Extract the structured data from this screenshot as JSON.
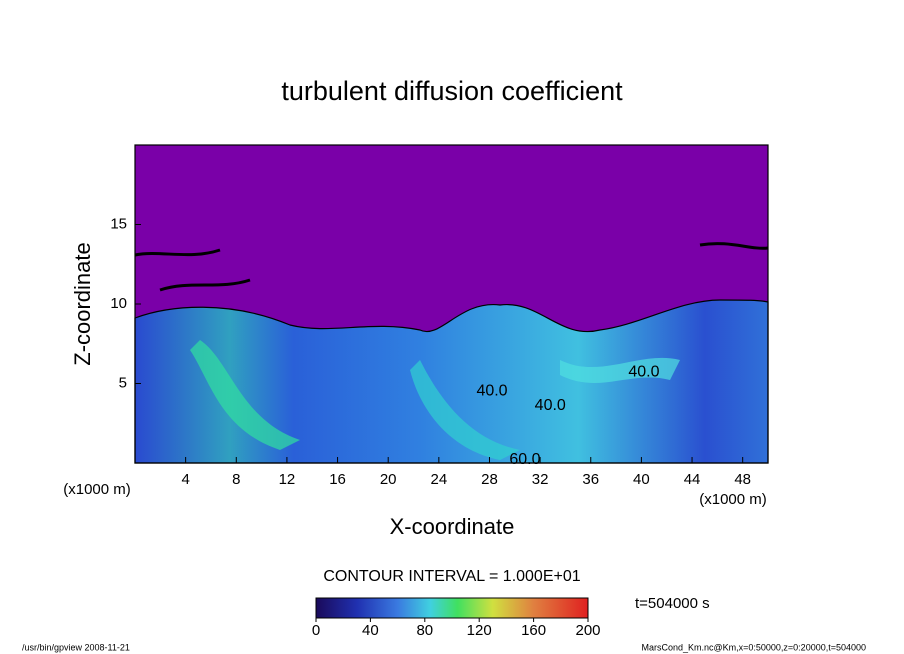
{
  "chart_data": {
    "type": "contour",
    "title": "turbulent diffusion coefficient",
    "x_label": "X-coordinate",
    "y_label": "Z-coordinate",
    "x_unit_labels": [
      "(x1000 m)",
      "(x1000 m)"
    ],
    "xlim": [
      0,
      50
    ],
    "xticks": [
      4,
      8,
      12,
      16,
      20,
      24,
      28,
      32,
      36,
      40,
      44,
      48
    ],
    "ylim": [
      0,
      20
    ],
    "yticks": [
      5,
      10,
      15
    ],
    "contour_labels": [
      {
        "text": "40.0",
        "x": 40.2,
        "z": 5.7
      },
      {
        "text": "40.0",
        "x": 32.8,
        "z": 3.6
      },
      {
        "text": "40.0",
        "x": 28.2,
        "z": 4.5
      },
      {
        "text": "60.0",
        "x": 30.8,
        "z": 0.2
      }
    ],
    "contour_interval_label": "CONTOUR INTERVAL = 1.000E+01",
    "colorbar": {
      "lim": [
        0,
        200
      ],
      "ticks": [
        0,
        40,
        80,
        120,
        160,
        200
      ]
    },
    "time_label": "t=504000 s",
    "footer_left": "/usr/bin/gpview  2008-11-21",
    "footer_right": "MarsCond_Km.nc@Km,x=0:50000,z=0:20000,t=504000"
  }
}
